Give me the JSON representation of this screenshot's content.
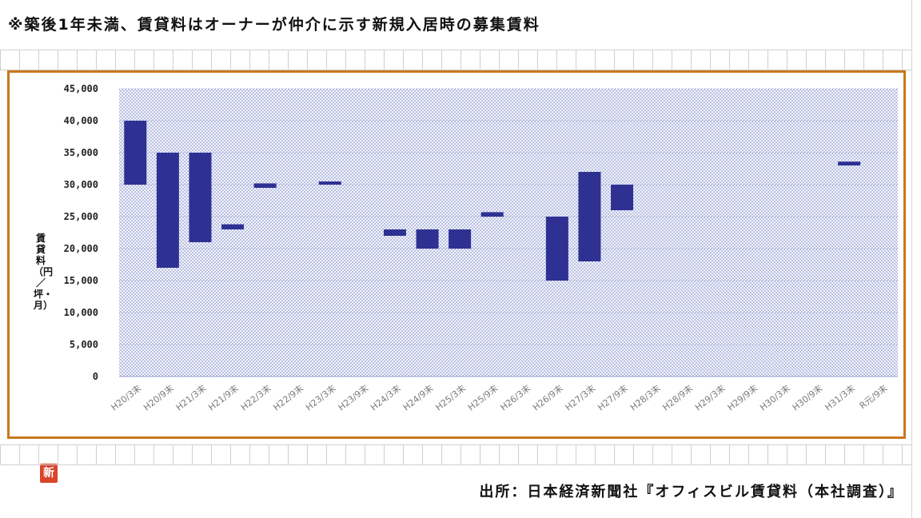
{
  "header": {
    "note": "※築後1年未満、賃貸料はオーナーが仲介に示す新規入居時の募集賃料"
  },
  "footer": {
    "source": "出所：日本経済新聞社『オフィスビル賃貸料（本社調査）』"
  },
  "seal": {
    "text": "新"
  },
  "chart_data": {
    "type": "bar",
    "subtype": "floating-range",
    "ylabel": "賃貸料（円／坪・月）",
    "ylim": [
      0,
      45000
    ],
    "yticks": [
      0,
      5000,
      10000,
      15000,
      20000,
      25000,
      30000,
      35000,
      40000,
      45000
    ],
    "ytick_labels": [
      "0",
      "5,000",
      "10,000",
      "15,000",
      "20,000",
      "25,000",
      "30,000",
      "35,000",
      "40,000",
      "45,000"
    ],
    "grid": true,
    "legend": "none",
    "bar_color": "#2e3192",
    "plot_background": "#eef0fa",
    "categories": [
      "H20/3末",
      "H20/9末",
      "H21/3末",
      "H21/9末",
      "H22/3末",
      "H22/9末",
      "H23/3末",
      "H23/9末",
      "H24/3末",
      "H24/9末",
      "H25/3末",
      "H25/9末",
      "H26/3末",
      "H26/9末",
      "H27/3末",
      "H27/9末",
      "H28/3末",
      "H28/9末",
      "H29/3末",
      "H29/9末",
      "H30/3末",
      "H30/9末",
      "H31/3末",
      "R元/9末"
    ],
    "low": [
      30000,
      17000,
      21000,
      23000,
      29500,
      null,
      30000,
      null,
      22000,
      20000,
      20000,
      25000,
      null,
      15000,
      18000,
      26000,
      null,
      null,
      null,
      null,
      null,
      null,
      33000,
      null
    ],
    "high": [
      40000,
      35000,
      35000,
      23800,
      30200,
      null,
      30500,
      null,
      23000,
      23000,
      23000,
      25700,
      null,
      25000,
      32000,
      30000,
      null,
      null,
      null,
      null,
      null,
      null,
      33600,
      null
    ]
  }
}
